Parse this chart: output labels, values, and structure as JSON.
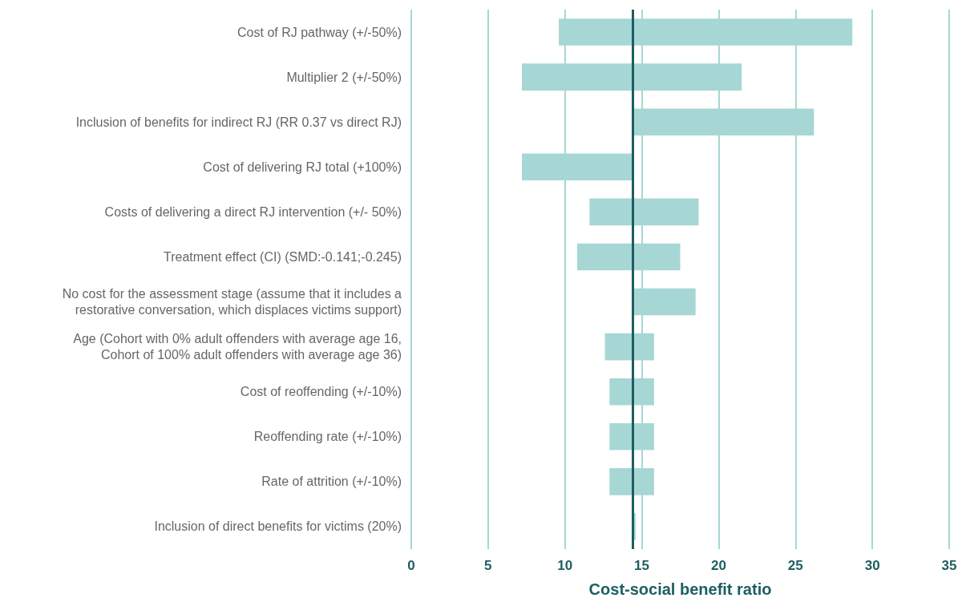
{
  "chart_data": {
    "type": "bar",
    "orientation": "horizontal",
    "xlabel": "Cost-social benefit ratio",
    "categories": [
      "Cost of RJ pathway (+/-50%)",
      "Multiplier 2 (+/-50%)",
      "Inclusion of benefits for indirect RJ (RR 0.37 vs direct RJ)",
      "Cost of delivering RJ total (+100%)",
      "Costs of delivering a direct RJ intervention (+/- 50%)",
      "Treatment effect (CI) (SMD:-0.141;-0.245)",
      "No cost for the assessment stage (assume that it includes a\nrestorative conversation, which displaces victims support)",
      "Age (Cohort with 0% adult offenders with average age 16,\nCohort of 100% adult offenders with average age 36)",
      "Cost of reoffending (+/-10%)",
      "Reoffending rate (+/-10%)",
      "Rate of attrition (+/-10%)",
      "Inclusion of direct benefits for victims (20%)"
    ],
    "base": [
      9.6,
      7.2,
      14.4,
      7.2,
      11.6,
      10.8,
      14.4,
      12.6,
      12.9,
      12.9,
      12.9,
      14.4
    ],
    "values": [
      19.1,
      14.3,
      11.8,
      7.2,
      7.1,
      6.7,
      4.1,
      3.2,
      2.9,
      2.9,
      2.9,
      0.2
    ],
    "color": "#a6d7d4",
    "xlim": [
      0,
      35
    ],
    "xticks": [
      0,
      5,
      10,
      15,
      20,
      25,
      30,
      35
    ],
    "grid": "x",
    "ref_lines": [
      {
        "axis": "x",
        "value": 14.4,
        "color": "#1d5e60"
      }
    ],
    "legend": false
  }
}
